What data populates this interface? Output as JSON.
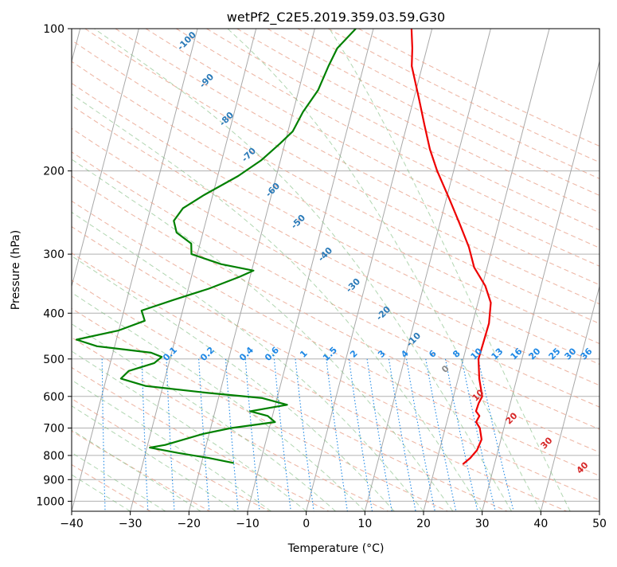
{
  "chart_data": {
    "type": "line",
    "subtype": "skew-t log-p diagram",
    "title": "wetPf2_C2E5.2019.359.03.59.G30",
    "xlabel": "Temperature (°C)",
    "ylabel": "Pressure (hPa)",
    "xlim": [
      -40,
      50
    ],
    "ylim": [
      1050,
      100
    ],
    "y_scale": "log",
    "x_ticks": [
      -40,
      -30,
      -20,
      -10,
      0,
      10,
      20,
      30,
      40,
      50
    ],
    "y_ticks": [
      100,
      200,
      300,
      400,
      500,
      600,
      700,
      800,
      900,
      1000
    ],
    "grid": true,
    "series": [
      {
        "role": "temperature",
        "color": "#ee0000",
        "points": [
          {
            "p": 100,
            "t": -3.5
          },
          {
            "p": 110,
            "t": -2.5
          },
          {
            "p": 120,
            "t": -1.8
          },
          {
            "p": 140,
            "t": 0.8
          },
          {
            "p": 160,
            "t": 3.0
          },
          {
            "p": 180,
            "t": 5.0
          },
          {
            "p": 200,
            "t": 7.2
          },
          {
            "p": 230,
            "t": 10.6
          },
          {
            "p": 260,
            "t": 13.5
          },
          {
            "p": 290,
            "t": 16.0
          },
          {
            "p": 320,
            "t": 17.8
          },
          {
            "p": 350,
            "t": 20.5
          },
          {
            "p": 380,
            "t": 22.2
          },
          {
            "p": 420,
            "t": 22.8
          },
          {
            "p": 460,
            "t": 22.7
          },
          {
            "p": 500,
            "t": 22.6
          },
          {
            "p": 550,
            "t": 23.6
          },
          {
            "p": 600,
            "t": 24.9
          },
          {
            "p": 620,
            "t": 24.6
          },
          {
            "p": 645,
            "t": 24.5
          },
          {
            "p": 660,
            "t": 25.3
          },
          {
            "p": 680,
            "t": 25.0
          },
          {
            "p": 700,
            "t": 25.9
          },
          {
            "p": 740,
            "t": 26.7
          },
          {
            "p": 780,
            "t": 26.4
          },
          {
            "p": 810,
            "t": 25.6
          },
          {
            "p": 835,
            "t": 24.6
          }
        ]
      },
      {
        "role": "dewpoint",
        "color": "#008000",
        "points": [
          {
            "p": 100,
            "t": -13.0
          },
          {
            "p": 110,
            "t": -15.3
          },
          {
            "p": 120,
            "t": -16.0
          },
          {
            "p": 135,
            "t": -16.7
          },
          {
            "p": 150,
            "t": -18.3
          },
          {
            "p": 165,
            "t": -19.2
          },
          {
            "p": 175,
            "t": -20.8
          },
          {
            "p": 190,
            "t": -23.3
          },
          {
            "p": 205,
            "t": -26.5
          },
          {
            "p": 225,
            "t": -31.5
          },
          {
            "p": 240,
            "t": -34.5
          },
          {
            "p": 255,
            "t": -35.5
          },
          {
            "p": 270,
            "t": -34.5
          },
          {
            "p": 285,
            "t": -31.5
          },
          {
            "p": 300,
            "t": -31.0
          },
          {
            "p": 315,
            "t": -25.5
          },
          {
            "p": 325,
            "t": -19.7
          },
          {
            "p": 335,
            "t": -21.8
          },
          {
            "p": 355,
            "t": -26.5
          },
          {
            "p": 375,
            "t": -32.0
          },
          {
            "p": 395,
            "t": -37.0
          },
          {
            "p": 415,
            "t": -36.0
          },
          {
            "p": 435,
            "t": -40.0
          },
          {
            "p": 455,
            "t": -46.8
          },
          {
            "p": 470,
            "t": -43.0
          },
          {
            "p": 485,
            "t": -33.5
          },
          {
            "p": 495,
            "t": -31.5
          },
          {
            "p": 510,
            "t": -32.5
          },
          {
            "p": 530,
            "t": -36.5
          },
          {
            "p": 550,
            "t": -37.5
          },
          {
            "p": 570,
            "t": -33.0
          },
          {
            "p": 590,
            "t": -22.0
          },
          {
            "p": 605,
            "t": -12.5
          },
          {
            "p": 625,
            "t": -8.0
          },
          {
            "p": 645,
            "t": -14.0
          },
          {
            "p": 660,
            "t": -10.8
          },
          {
            "p": 680,
            "t": -9.3
          },
          {
            "p": 700,
            "t": -16.5
          },
          {
            "p": 720,
            "t": -21.0
          },
          {
            "p": 760,
            "t": -27.0
          },
          {
            "p": 770,
            "t": -29.5
          },
          {
            "p": 790,
            "t": -24.5
          },
          {
            "p": 810,
            "t": -19.0
          },
          {
            "p": 830,
            "t": -14.5
          }
        ]
      }
    ],
    "dry_adiabat_labels": [
      "0",
      "10",
      "20",
      "30",
      "40"
    ],
    "moist_adiabat_labels": [
      "-100",
      "-90",
      "-80",
      "-70",
      "-60",
      "-50",
      "-40",
      "-30",
      "-20",
      "-10"
    ],
    "mixing_ratio_labels": [
      "0.1",
      "0.2",
      "0.4",
      "0.6",
      "1",
      "1.5",
      "2",
      "3",
      "4",
      "6",
      "8",
      "10",
      "13",
      "16",
      "20",
      "25",
      "30",
      "36"
    ],
    "line_colors": {
      "temperature": "#ee0000",
      "dewpoint": "#008000",
      "dry_adiabat": "#e8a08a",
      "moist_adiabat": "#7dba7d",
      "mixing_ratio": "#1e88e5",
      "isotherm": "#999999",
      "axis_label_blue": "#2a7ab8",
      "axis_label_red": "#d62728"
    }
  }
}
